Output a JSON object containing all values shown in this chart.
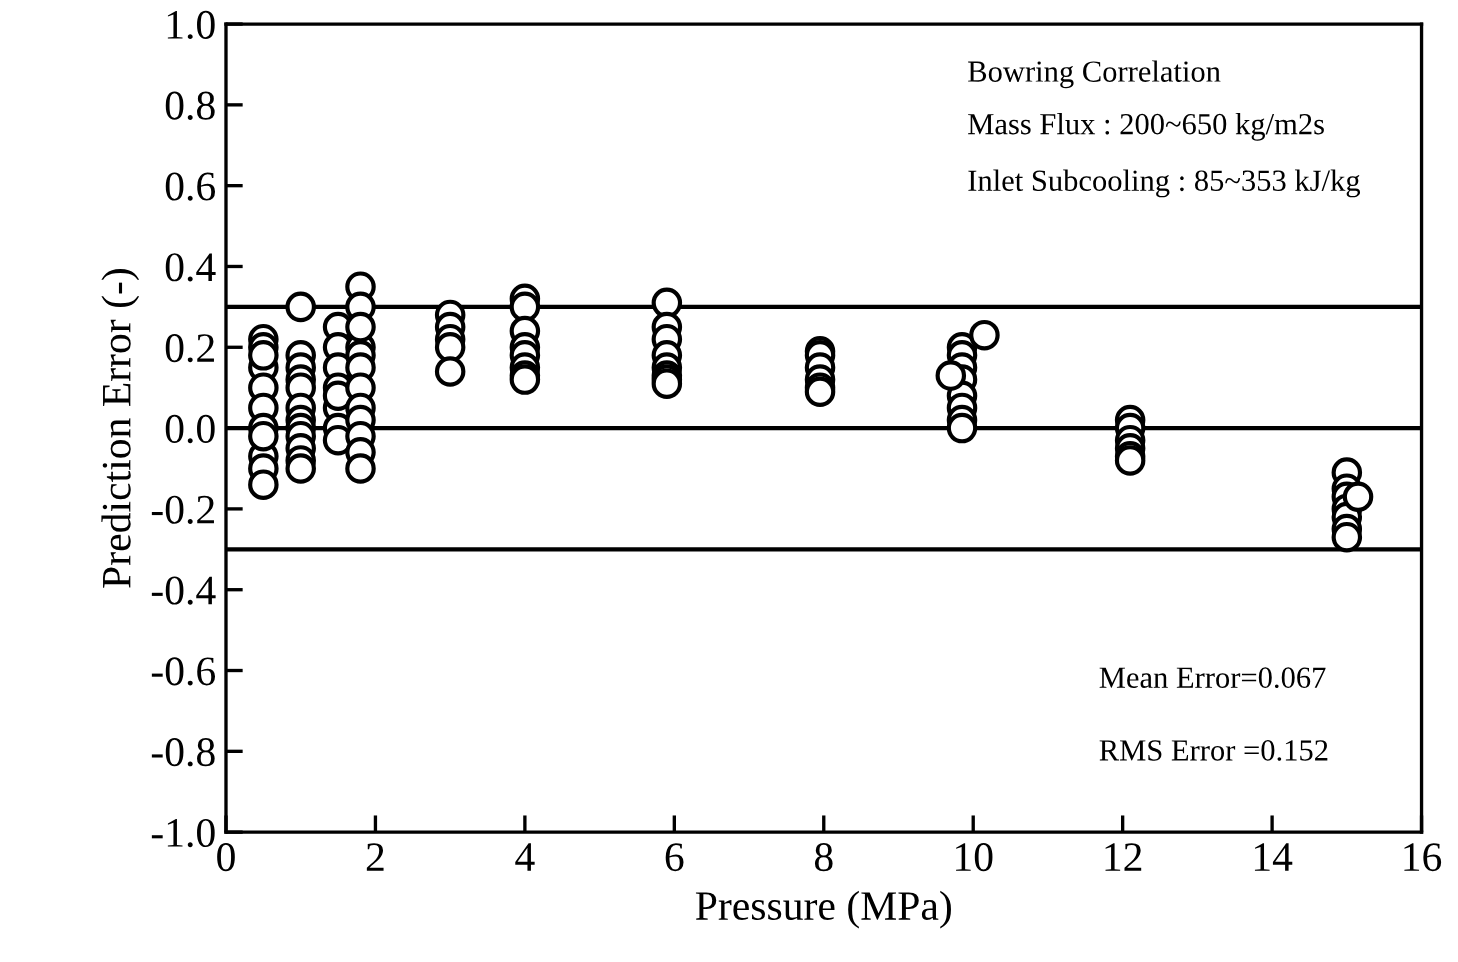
{
  "chart_data": {
    "type": "scatter",
    "xlabel": "Pressure (MPa)",
    "ylabel": "Prediction Error (-)",
    "annotations": [
      "Bowring Correlation",
      "Mass Flux : 200~650 kg/m2s",
      "Inlet Subcooling : 85~353 kJ/kg",
      "Mean Error=0.067",
      "RMS Error =0.152"
    ],
    "series": [
      {
        "color": "#000000",
        "x": [
          0.5,
          0.5,
          0.5,
          0.5,
          0.5,
          0.5,
          0.5,
          0.5,
          0.5,
          0.5,
          0.5,
          1.0,
          1.0,
          1.0,
          1.0,
          1.0,
          1.0,
          1.0,
          1.0,
          1.0,
          1.0,
          1.0,
          1.0,
          1.5,
          1.5,
          1.5,
          1.5,
          1.5,
          1.5,
          1.5,
          1.5,
          1.8,
          1.8,
          1.8,
          1.8,
          1.8,
          1.8,
          1.8,
          1.8,
          1.8,
          1.8,
          1.8,
          1.8,
          3.0,
          3.0,
          3.0,
          3.0,
          3.0,
          4.0,
          4.0,
          4.0,
          4.0,
          4.0,
          4.0,
          4.0,
          4.0,
          5.9,
          5.9,
          5.9,
          5.9,
          5.9,
          5.9,
          5.9,
          5.9,
          7.95,
          7.95,
          7.95,
          7.95,
          7.95,
          7.95,
          9.85,
          9.85,
          9.85,
          9.85,
          9.85,
          9.85,
          9.85,
          9.85,
          9.7,
          10.15,
          12.1,
          12.1,
          12.1,
          12.1,
          12.1,
          12.1,
          15.0,
          15.0,
          15.0,
          15.0,
          15.0,
          15.0,
          15.0,
          15.15
        ],
        "values": [
          0.22,
          0.2,
          0.15,
          0.1,
          0.05,
          0.0,
          -0.07,
          -0.1,
          -0.14,
          0.18,
          -0.02,
          0.3,
          0.18,
          0.15,
          0.12,
          0.1,
          0.05,
          0.02,
          0.0,
          -0.02,
          -0.05,
          -0.08,
          -0.1,
          0.25,
          0.2,
          0.15,
          0.1,
          0.05,
          0.0,
          -0.03,
          0.08,
          0.35,
          0.3,
          0.2,
          0.18,
          0.15,
          0.1,
          0.05,
          0.02,
          -0.02,
          -0.06,
          -0.1,
          0.25,
          0.28,
          0.25,
          0.22,
          0.2,
          0.14,
          0.32,
          0.3,
          0.24,
          0.2,
          0.18,
          0.15,
          0.13,
          0.12,
          0.31,
          0.25,
          0.22,
          0.18,
          0.15,
          0.13,
          0.12,
          0.11,
          0.19,
          0.18,
          0.15,
          0.12,
          0.1,
          0.09,
          0.2,
          0.18,
          0.15,
          0.12,
          0.08,
          0.05,
          0.02,
          0.0,
          0.13,
          0.23,
          0.02,
          0.0,
          -0.03,
          -0.05,
          -0.07,
          -0.08,
          -0.11,
          -0.15,
          -0.17,
          -0.2,
          -0.22,
          -0.25,
          -0.27,
          -0.17
        ]
      }
    ],
    "ref_lines": [
      {
        "axis": "y",
        "value": 0.3,
        "color": "#000000"
      },
      {
        "axis": "y",
        "value": 0.0,
        "color": "#000000"
      },
      {
        "axis": "y",
        "value": -0.3,
        "color": "#000000"
      }
    ],
    "xlim": [
      0,
      16
    ],
    "xticks": [
      0,
      2,
      4,
      6,
      8,
      10,
      12,
      14,
      16
    ],
    "ylim": [
      -1.0,
      1.0
    ],
    "yticks": [
      {
        "value": -1.0,
        "label": "-1.0"
      },
      {
        "value": -0.8,
        "label": "-0.8"
      },
      {
        "value": -0.6,
        "label": "-0.6"
      },
      {
        "value": -0.4,
        "label": "-0.4"
      },
      {
        "value": -0.2,
        "label": "-0.2"
      },
      {
        "value": 0.0,
        "label": "0.0"
      },
      {
        "value": 0.2,
        "label": "0.2"
      },
      {
        "value": 0.4,
        "label": "0.4"
      },
      {
        "value": 0.6,
        "label": "0.6"
      },
      {
        "value": 0.8,
        "label": "0.8"
      },
      {
        "value": 1.0,
        "label": "1.0"
      }
    ],
    "grid": false,
    "legend": false,
    "marker": "circle"
  }
}
